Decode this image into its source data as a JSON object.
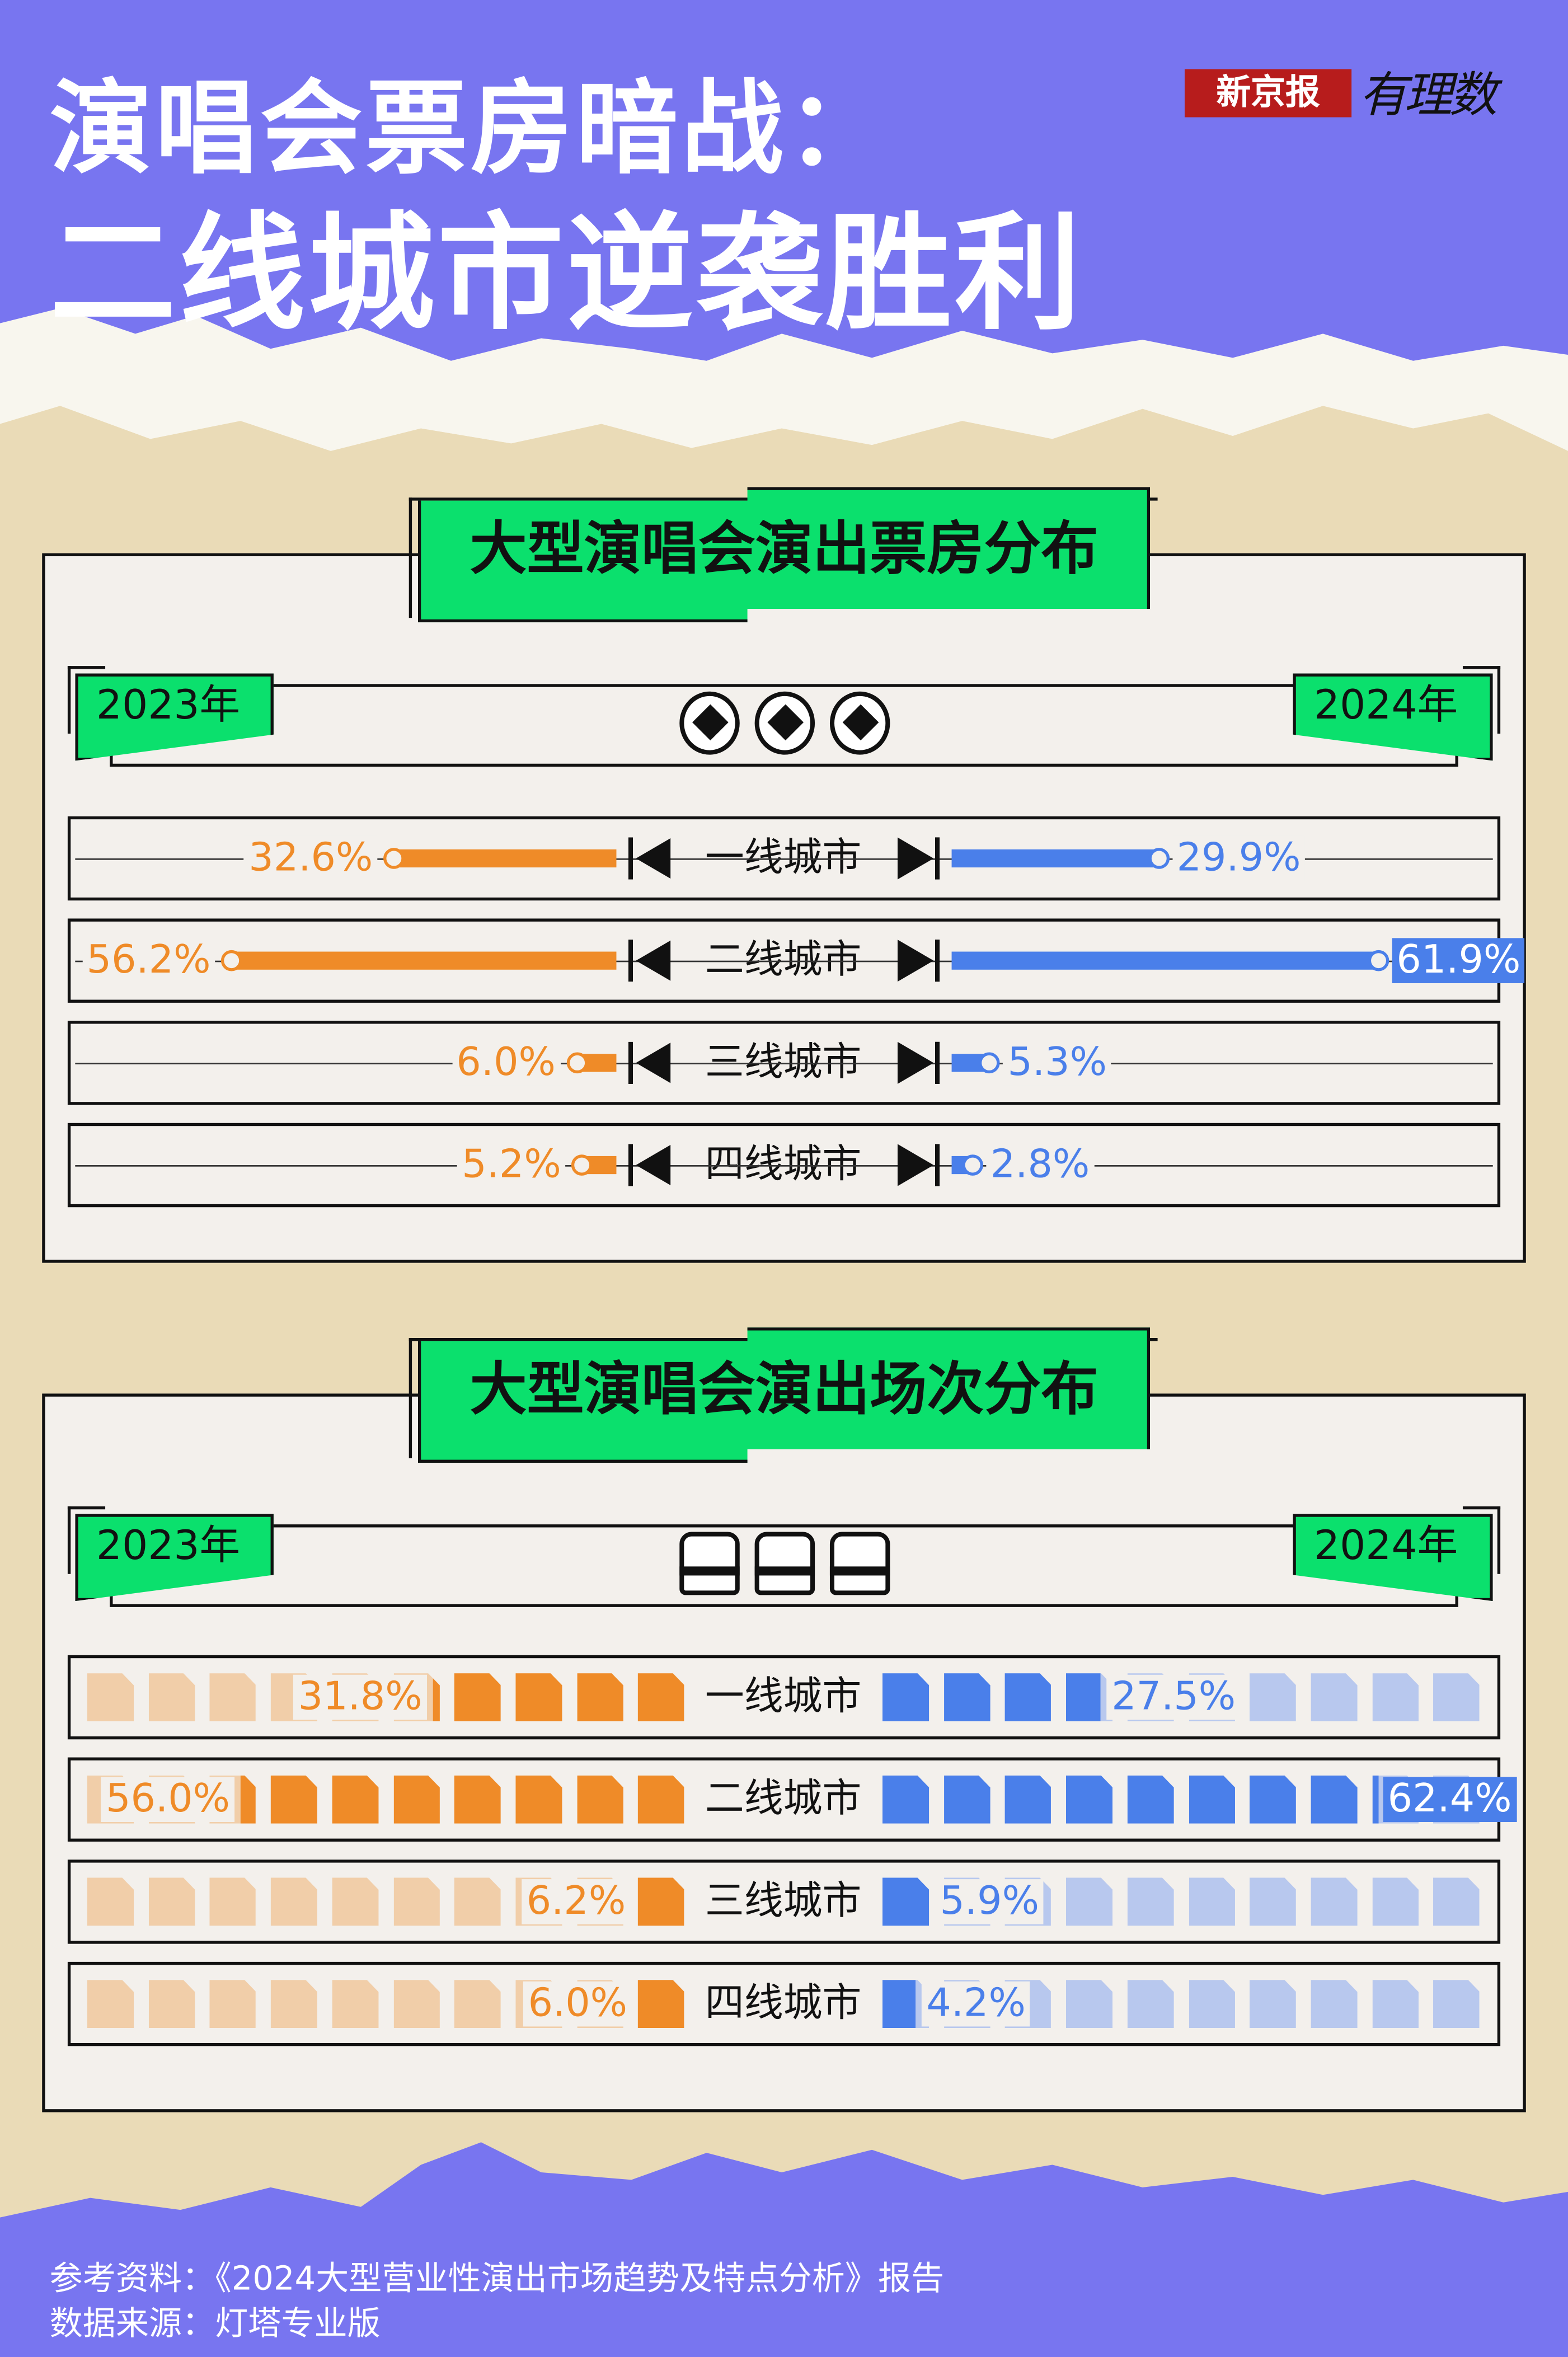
{
  "header": {
    "title_line1": "演唱会票房暗战：",
    "title_line2": "二线城市逆袭胜利",
    "logo_brand": "新京报",
    "logo_sub": "有理数"
  },
  "colors": {
    "purple": "#7875f0",
    "beige": "#eadbb7",
    "green": "#0be06d",
    "y2023": "#ef8b28",
    "y2024": "#4a7fea",
    "y2023_light": "#f1cea9",
    "y2024_light": "#b8c8ee"
  },
  "chart_data": [
    {
      "type": "bar",
      "title": "大型演唱会演出票房分布",
      "icon": "diamond-ticket-icon",
      "legend": [
        "2023年",
        "2024年"
      ],
      "categories": [
        "一线城市",
        "二线城市",
        "三线城市",
        "四线城市"
      ],
      "series": [
        {
          "name": "2023年",
          "values": [
            32.6,
            56.2,
            6.0,
            5.2
          ],
          "labels": [
            "32.6%",
            "56.2%",
            "6.0%",
            "5.2%"
          ]
        },
        {
          "name": "2024年",
          "values": [
            29.9,
            61.9,
            5.3,
            2.8
          ],
          "labels": [
            "29.9%",
            "61.9%",
            "5.3%",
            "2.8%"
          ]
        }
      ]
    },
    {
      "type": "bar",
      "title": "大型演唱会演出场次分布",
      "icon": "seat-icon",
      "legend": [
        "2023年",
        "2024年"
      ],
      "categories": [
        "一线城市",
        "二线城市",
        "三线城市",
        "四线城市"
      ],
      "series": [
        {
          "name": "2023年",
          "values": [
            31.8,
            56.0,
            6.2,
            6.0
          ],
          "labels": [
            "31.8%",
            "56.0%",
            "6.2%",
            "6.0%"
          ]
        },
        {
          "name": "2024年",
          "values": [
            27.5,
            62.4,
            5.9,
            4.2
          ],
          "labels": [
            "27.5%",
            "62.4%",
            "5.9%",
            "4.2%"
          ]
        }
      ]
    }
  ],
  "footer": {
    "reference": "参考资料：《2024大型营业性演出市场趋势及特点分析》报告",
    "source": "数据来源：灯塔专业版"
  }
}
